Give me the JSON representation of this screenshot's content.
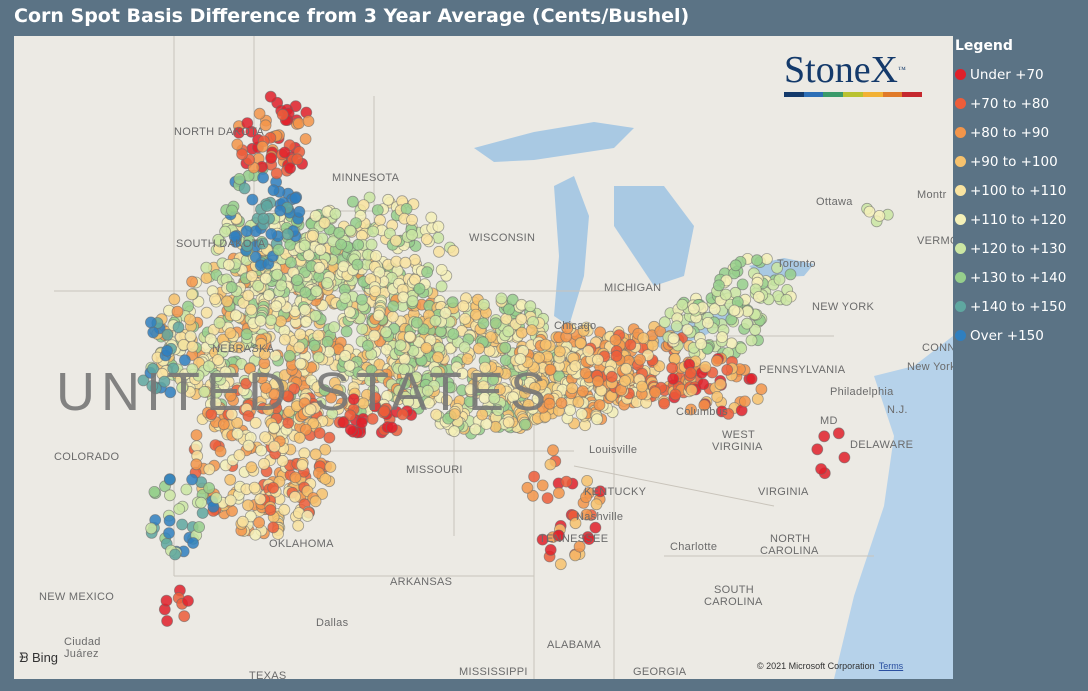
{
  "title": "Corn Spot Basis Difference from 3 Year Average (Cents/Bushel)",
  "legend": {
    "title": "Legend",
    "items": [
      {
        "label": "Under +70",
        "color": "#e0202a"
      },
      {
        "label": "+70 to +80",
        "color": "#ec5d3a"
      },
      {
        "label": "+80 to +90",
        "color": "#f3954a"
      },
      {
        "label": "+90 to +100",
        "color": "#f7c26d"
      },
      {
        "label": "+100 to +110",
        "color": "#f9e3a0"
      },
      {
        "label": "+110 to +120",
        "color": "#f4f0b8"
      },
      {
        "label": "+120 to +130",
        "color": "#cbe6a3"
      },
      {
        "label": "+130 to +140",
        "color": "#96cf8c"
      },
      {
        "label": "+140 to +150",
        "color": "#5fa7a0"
      },
      {
        "label": "Over +150",
        "color": "#2f7fbf"
      }
    ]
  },
  "logo": {
    "text": "StoneX",
    "tm": "™",
    "bar_colors": [
      "#143a6b",
      "#2d6fb7",
      "#3a9a6a",
      "#b9c230",
      "#f2b134",
      "#e07a29",
      "#c5282e"
    ]
  },
  "map": {
    "big_label": "UNITED STATES",
    "place_labels": [
      {
        "text": "NORTH DAKOTA"
      },
      {
        "text": "MINNESOTA"
      },
      {
        "text": "SOUTH DAKOTA"
      },
      {
        "text": "WISCONSIN"
      },
      {
        "text": "NEBRASKA"
      },
      {
        "text": "COLORADO"
      },
      {
        "text": "MISSOURI"
      },
      {
        "text": "KENTUCKY"
      },
      {
        "text": "TENNESSEE"
      },
      {
        "text": "OKLAHOMA"
      },
      {
        "text": "ARKANSAS"
      },
      {
        "text": "NEW MEXICO"
      },
      {
        "text": "Ciudad"
      },
      {
        "text": "Juárez"
      },
      {
        "text": "TEXAS"
      },
      {
        "text": "MISSISSIPPI"
      },
      {
        "text": "ALABAMA"
      },
      {
        "text": "GEORGIA"
      },
      {
        "text": "SOUTH"
      },
      {
        "text": "CAROLINA"
      },
      {
        "text": "NORTH"
      },
      {
        "text": "CAROLINA"
      },
      {
        "text": "VIRGINIA"
      },
      {
        "text": "WEST"
      },
      {
        "text": "VIRGINIA"
      },
      {
        "text": "PENNSYLVANIA"
      },
      {
        "text": "NEW YORK"
      },
      {
        "text": "Chicago"
      },
      {
        "text": "Louisville"
      },
      {
        "text": "Nashville"
      },
      {
        "text": "Charlotte"
      },
      {
        "text": "Columbus"
      },
      {
        "text": "Philadelphia"
      },
      {
        "text": "New York"
      },
      {
        "text": "Toronto"
      },
      {
        "text": "Ottawa"
      },
      {
        "text": "Montr"
      },
      {
        "text": "VERMO"
      },
      {
        "text": "MD"
      },
      {
        "text": "DELAWARE"
      },
      {
        "text": "N.J."
      },
      {
        "text": "CONN"
      },
      {
        "text": "Dallas"
      },
      {
        "text": "MICHIGAN"
      }
    ],
    "attribution": "© 2021 Microsoft Corporation",
    "terms": "Terms",
    "bing": "Bing"
  }
}
